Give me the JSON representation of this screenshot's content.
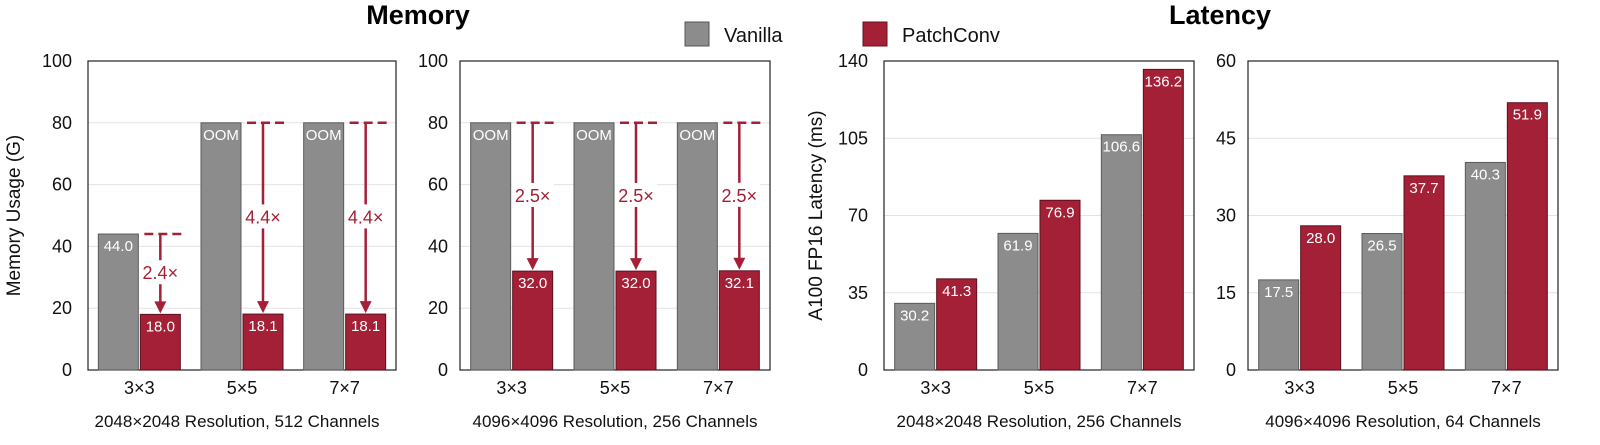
{
  "colors": {
    "vanilla": "#8c8c8c",
    "patchconv": "#a32036",
    "annotation": "#a32036"
  },
  "section_titles": {
    "memory": "Memory",
    "latency": "Latency"
  },
  "legend": [
    {
      "key": "vanilla",
      "label": "Vanilla"
    },
    {
      "key": "patchconv",
      "label": "PatchConv"
    }
  ],
  "chart_data": [
    {
      "type": "bar",
      "ylabel": "Memory Usage (G)",
      "xlabel": "2048×2048 Resolution, 512 Channels",
      "categories": [
        "3×3",
        "5×5",
        "7×7"
      ],
      "ylim": [
        0,
        100
      ],
      "yticks": [
        0,
        20,
        40,
        60,
        80,
        100
      ],
      "grid": true,
      "series": [
        {
          "name": "Vanilla",
          "key": "vanilla",
          "values": [
            44.0,
            80,
            80
          ],
          "labels": [
            "44.0",
            "OOM",
            "OOM"
          ]
        },
        {
          "name": "PatchConv",
          "key": "patchconv",
          "values": [
            18.0,
            18.1,
            18.1
          ],
          "labels": [
            "18.0",
            "18.1",
            "18.1"
          ]
        }
      ],
      "reductions": [
        "2.4×",
        "4.4×",
        "4.4×"
      ]
    },
    {
      "type": "bar",
      "ylabel": "",
      "xlabel": "4096×4096 Resolution, 256 Channels",
      "categories": [
        "3×3",
        "5×5",
        "7×7"
      ],
      "ylim": [
        0,
        100
      ],
      "yticks": [
        0,
        20,
        40,
        60,
        80,
        100
      ],
      "grid": true,
      "series": [
        {
          "name": "Vanilla",
          "key": "vanilla",
          "values": [
            80,
            80,
            80
          ],
          "labels": [
            "OOM",
            "OOM",
            "OOM"
          ]
        },
        {
          "name": "PatchConv",
          "key": "patchconv",
          "values": [
            32.0,
            32.0,
            32.1
          ],
          "labels": [
            "32.0",
            "32.0",
            "32.1"
          ]
        }
      ],
      "reductions": [
        "2.5×",
        "2.5×",
        "2.5×"
      ]
    },
    {
      "type": "bar",
      "ylabel": "A100 FP16 Latency (ms)",
      "xlabel": "2048×2048 Resolution, 256 Channels",
      "categories": [
        "3×3",
        "5×5",
        "7×7"
      ],
      "ylim": [
        0,
        140
      ],
      "yticks": [
        0,
        35,
        70,
        105,
        140
      ],
      "grid": true,
      "series": [
        {
          "name": "Vanilla",
          "key": "vanilla",
          "values": [
            30.2,
            61.9,
            106.6
          ],
          "labels": [
            "30.2",
            "61.9",
            "106.6"
          ]
        },
        {
          "name": "PatchConv",
          "key": "patchconv",
          "values": [
            41.3,
            76.9,
            136.2
          ],
          "labels": [
            "41.3",
            "76.9",
            "136.2"
          ]
        }
      ]
    },
    {
      "type": "bar",
      "ylabel": "",
      "xlabel": "4096×4096 Resolution, 64 Channels",
      "categories": [
        "3×3",
        "5×5",
        "7×7"
      ],
      "ylim": [
        0,
        60
      ],
      "yticks": [
        0,
        15,
        30,
        45,
        60
      ],
      "grid": true,
      "series": [
        {
          "name": "Vanilla",
          "key": "vanilla",
          "values": [
            17.5,
            26.5,
            40.3
          ],
          "labels": [
            "17.5",
            "26.5",
            "40.3"
          ]
        },
        {
          "name": "PatchConv",
          "key": "patchconv",
          "values": [
            28.0,
            37.7,
            51.9
          ],
          "labels": [
            "28.0",
            "37.7",
            "51.9"
          ]
        }
      ]
    }
  ]
}
